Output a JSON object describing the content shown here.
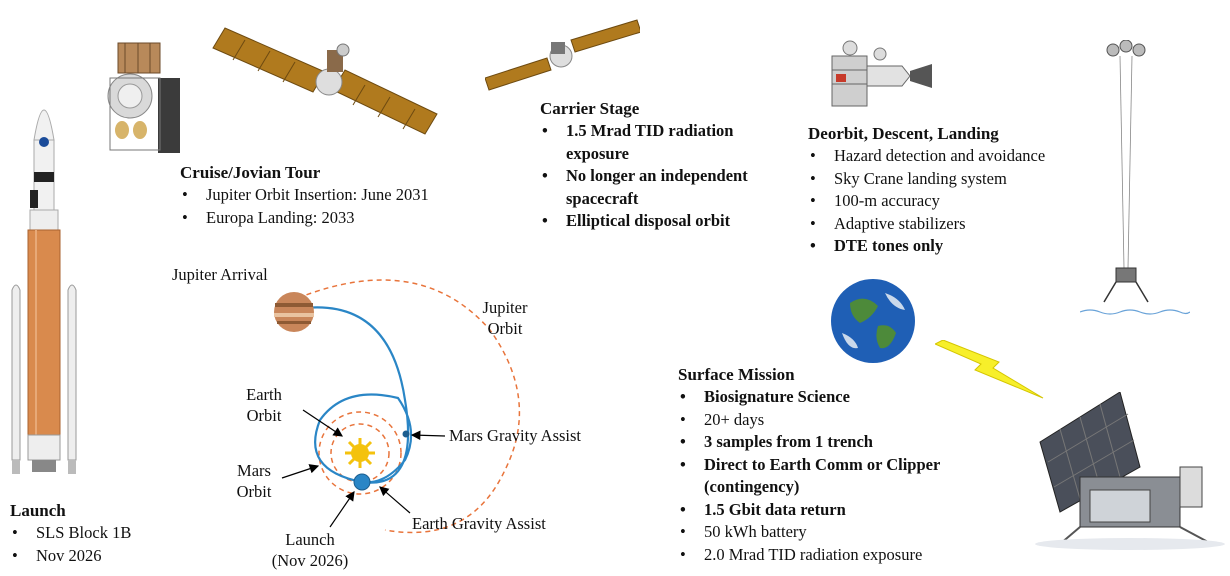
{
  "colors": {
    "orbit_blue": "#2a86c6",
    "orbit_orange": "#e8743b",
    "sun_yellow": "#f4c20d",
    "lightning_yellow": "#f7ef2a",
    "rocket_orange": "#d98a4d",
    "solar_panel": "#b07a1e"
  },
  "icons": [
    "sls-rocket-illustration",
    "lander-cruise-stack-illustration",
    "cruise-spacecraft-illustration",
    "carrier-stage-illustration",
    "descent-stage-illustration",
    "sky-crane-illustration",
    "earth-globe-illustration",
    "lightning-bolt-icon",
    "surface-lander-illustration",
    "jupiter-icon",
    "sun-icon",
    "earth-icon"
  ],
  "launch": {
    "title": "Launch",
    "items": [
      {
        "text": "SLS Block 1B",
        "bold": false
      },
      {
        "text": "Nov 2026",
        "bold": false
      }
    ]
  },
  "cruise": {
    "title": "Cruise/Jovian Tour",
    "items": [
      {
        "text": "Jupiter Orbit Insertion: June 2031",
        "bold": false
      },
      {
        "text": "Europa Landing: 2033",
        "bold": false
      }
    ]
  },
  "carrier": {
    "title": "Carrier Stage",
    "items": [
      {
        "text": "1.5 Mrad TID radiation exposure",
        "bold": true
      },
      {
        "text": "No longer an independent spacecraft",
        "bold": true
      },
      {
        "text": "Elliptical disposal orbit",
        "bold": true
      }
    ]
  },
  "deorbit": {
    "title": "Deorbit, Descent, Landing",
    "items": [
      {
        "text": "Hazard detection and avoidance",
        "bold": false
      },
      {
        "text": "Sky Crane landing system",
        "bold": false
      },
      {
        "text": "100-m accuracy",
        "bold": false
      },
      {
        "text": "Adaptive stabilizers",
        "bold": false
      },
      {
        "text": "DTE tones only",
        "bold": true
      }
    ]
  },
  "surface": {
    "title": "Surface Mission",
    "items": [
      {
        "text": "Biosignature Science",
        "bold": true
      },
      {
        "text": "20+ days",
        "bold": false
      },
      {
        "text": "3 samples from 1 trench",
        "bold": true
      },
      {
        "text": "Direct to Earth Comm or Clipper (contingency)",
        "bold": true
      },
      {
        "text": "1.5 Gbit data return",
        "bold": true
      },
      {
        "text": "50 kWh battery",
        "bold": false
      },
      {
        "text": "2.0 Mrad TID radiation exposure",
        "bold": false
      }
    ]
  },
  "diagram": {
    "jupiter_arrival": "Jupiter Arrival",
    "jupiter_orbit_1": "Jupiter",
    "jupiter_orbit_2": "Orbit",
    "earth_orbit_1": "Earth",
    "earth_orbit_2": "Orbit",
    "mars_orbit_1": "Mars",
    "mars_orbit_2": "Orbit",
    "launch_1": "Launch",
    "launch_2": "(Nov 2026)",
    "mars_gravity_assist": "Mars Gravity Assist",
    "earth_gravity_assist": "Earth Gravity Assist"
  }
}
